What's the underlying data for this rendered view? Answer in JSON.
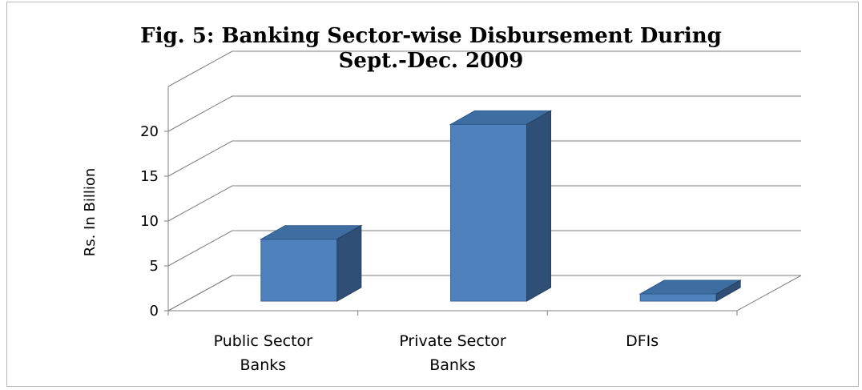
{
  "chart_data": {
    "type": "bar",
    "title": [
      "Fig. 5: Banking Sector-wise Disbursement During",
      "Sept.-Dec. 2009"
    ],
    "ylabel": "Rs. In Billion",
    "xlabel": "",
    "categories": [
      [
        "Public Sector",
        "Banks"
      ],
      [
        "Private Sector",
        "Banks"
      ],
      [
        "DFIs"
      ]
    ],
    "values": [
      6.9,
      19.7,
      0.8
    ],
    "ylim": [
      0,
      20
    ],
    "yticks": [
      "0",
      "5",
      "10",
      "15",
      "20"
    ],
    "grid": true,
    "legend": "none",
    "style": "3d-column",
    "colors": {
      "front": "#4f81bd",
      "top": "#3e6da1",
      "side": "#2f4f77",
      "grid": "#808080"
    }
  }
}
